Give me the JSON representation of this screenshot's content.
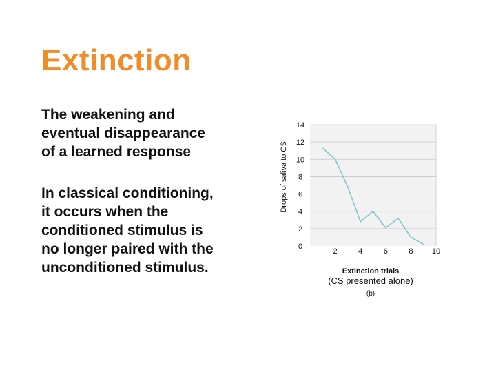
{
  "title": "Extinction",
  "colors": {
    "title": "#f28c28",
    "line": "#7ec8cc",
    "grid": "#c8c8c8",
    "plot_bg": "#f2f2f2"
  },
  "paragraphs": [
    [
      "The weakening and",
      "eventual disappearance",
      "of a learned response"
    ],
    [
      "In classical conditioning,",
      "it occurs when the",
      "conditioned stimulus is",
      "no longer paired with the",
      "unconditioned stimulus."
    ]
  ],
  "chart_data": {
    "type": "line",
    "panel_label": "(b)",
    "xlabel": "Extinction trials",
    "xlabel_sub": "(CS presented alone)",
    "ylabel": "Drops of saliva to CS",
    "xlim": [
      0,
      10
    ],
    "ylim": [
      0,
      14
    ],
    "xticks": [
      2,
      4,
      6,
      8,
      10
    ],
    "yticks": [
      0,
      2,
      4,
      6,
      8,
      10,
      12,
      14
    ],
    "grid": true,
    "series": [
      {
        "x": [
          1,
          2,
          3,
          4,
          5,
          6,
          7,
          8,
          9
        ],
        "y": [
          11.3,
          10,
          6.8,
          2.8,
          4,
          2.1,
          3.2,
          1,
          0.2
        ]
      }
    ]
  }
}
